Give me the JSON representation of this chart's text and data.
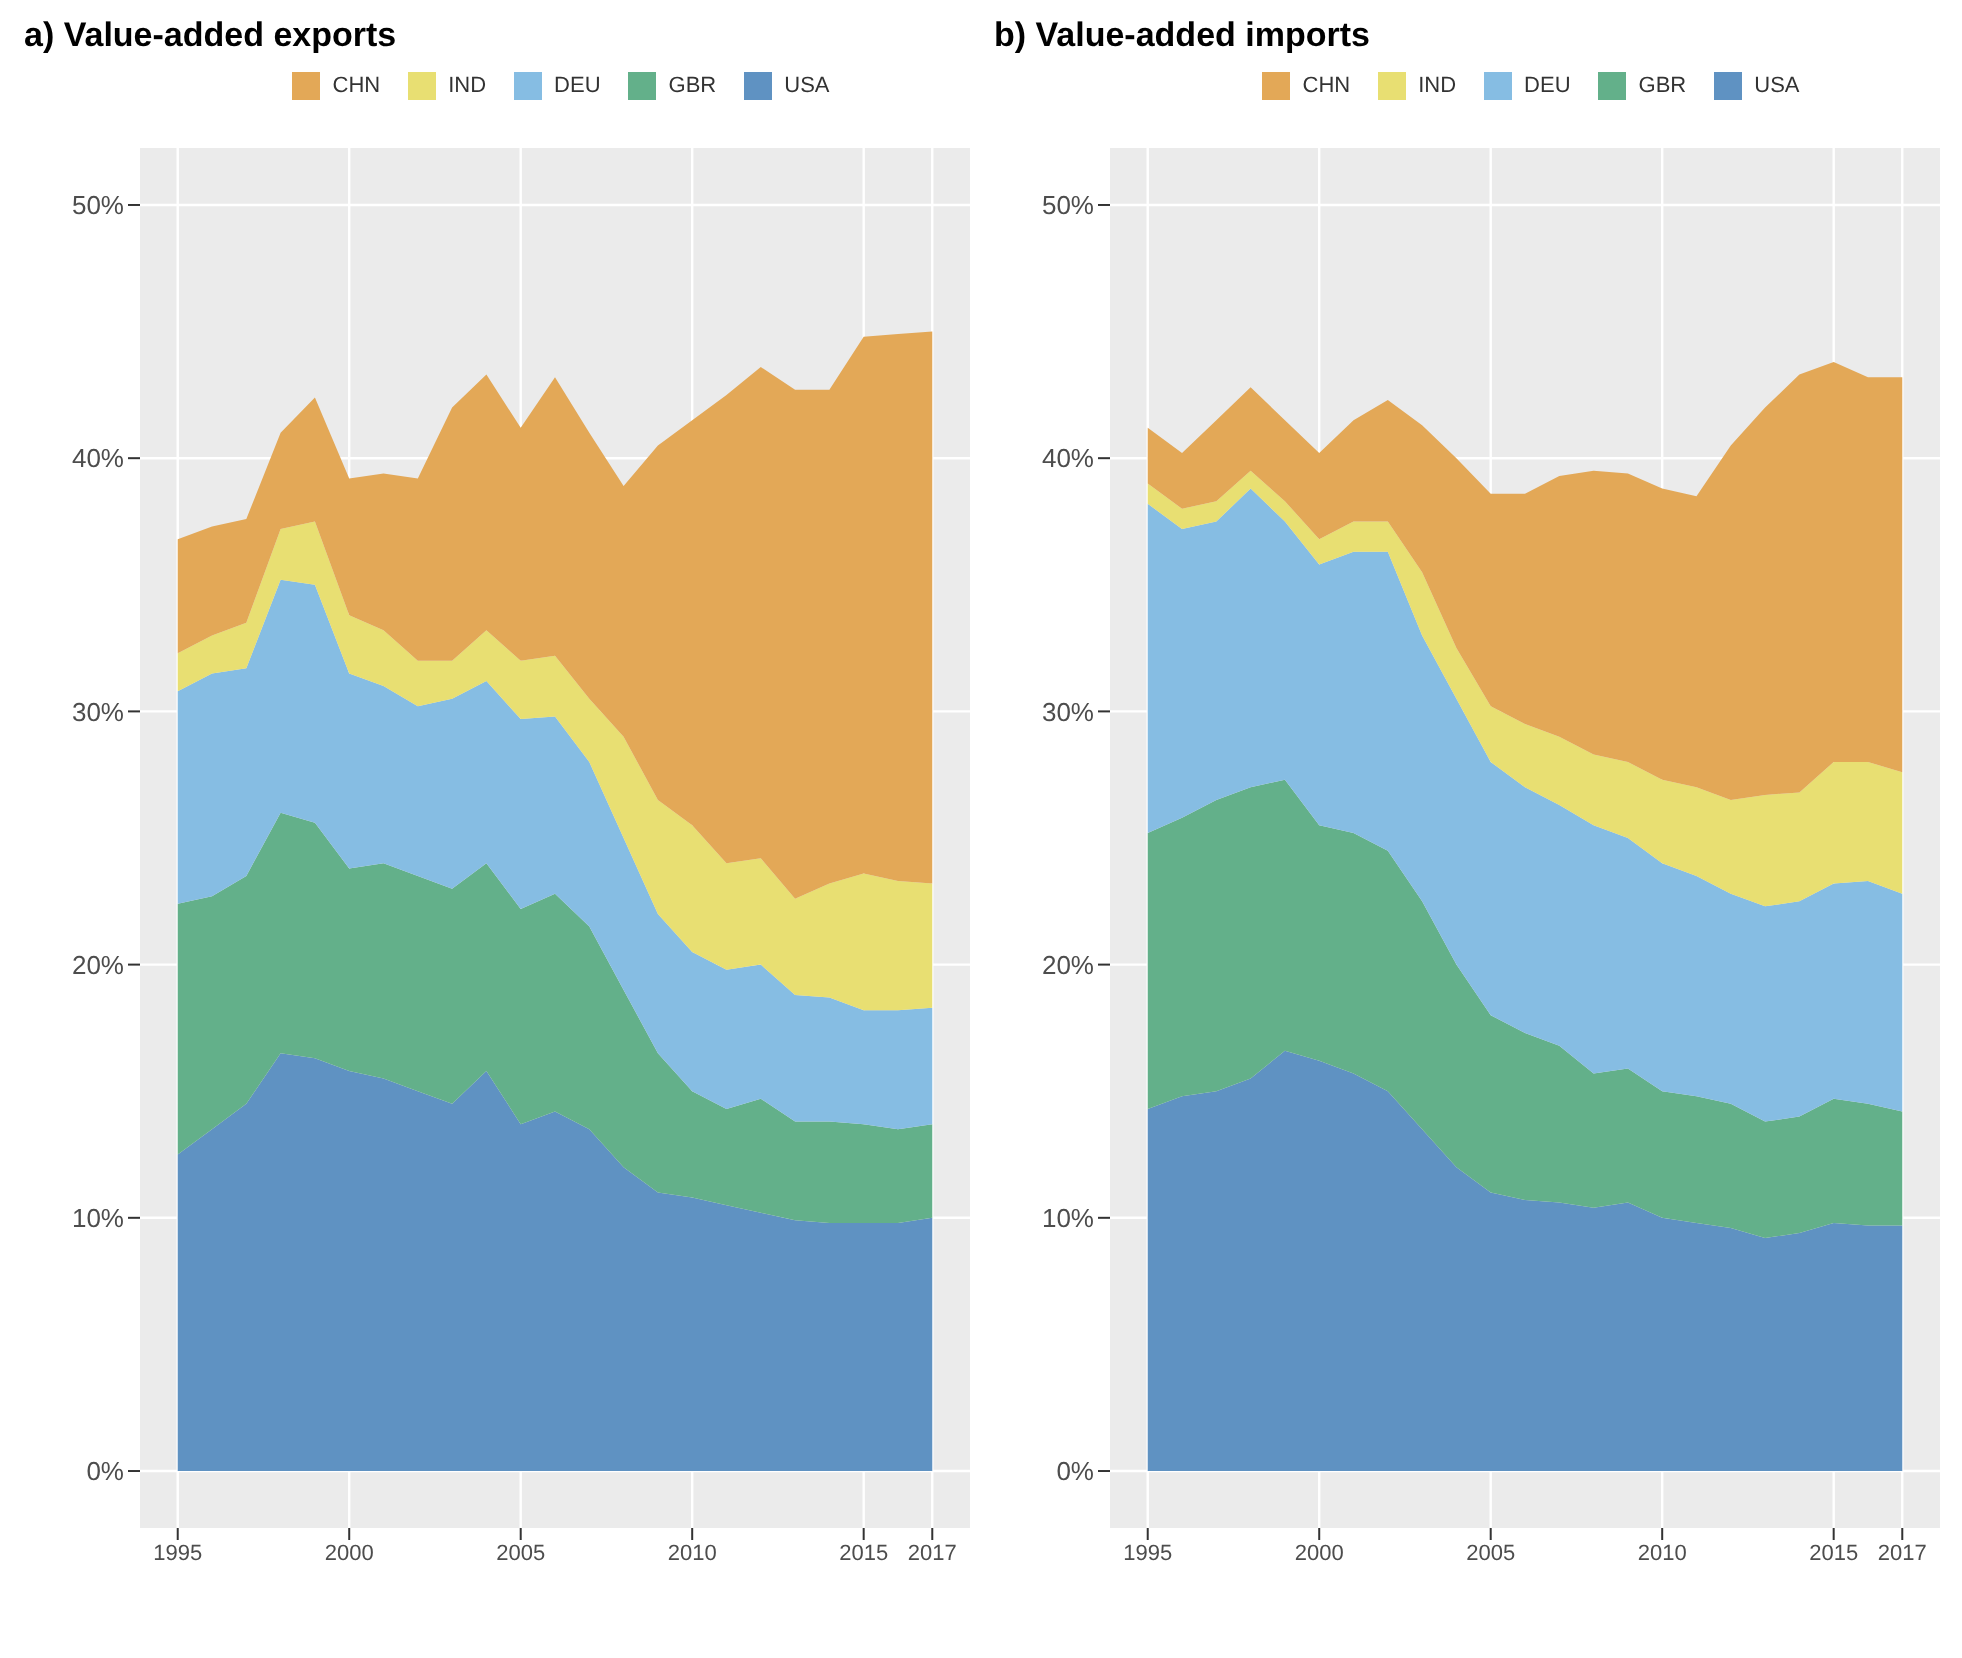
{
  "chart_data": [
    {
      "type": "area",
      "title": "a) Value-added exports",
      "stacked": true,
      "legend": "top",
      "grid": true,
      "x": [
        1995,
        1996,
        1997,
        1998,
        1999,
        2000,
        2001,
        2002,
        2003,
        2004,
        2005,
        2006,
        2007,
        2008,
        2009,
        2010,
        2011,
        2012,
        2013,
        2014,
        2015,
        2016,
        2017
      ],
      "xlim": [
        1993.9,
        2018.1
      ],
      "xticks": [
        1995,
        2000,
        2005,
        2010,
        2015,
        2017
      ],
      "ylim": [
        -2.25,
        52.25
      ],
      "yticks": [
        {
          "value": 0,
          "label": "0%"
        },
        {
          "value": 10,
          "label": "10%"
        },
        {
          "value": 20,
          "label": "20%"
        },
        {
          "value": 30,
          "label": "30%"
        },
        {
          "value": 40,
          "label": "40%"
        },
        {
          "value": 50,
          "label": "50%"
        }
      ],
      "series": [
        {
          "name": "USA",
          "color": "#5f92c2",
          "values": [
            12.5,
            13.5,
            14.5,
            16.5,
            16.3,
            15.8,
            15.5,
            15.0,
            14.5,
            15.8,
            13.7,
            14.2,
            13.5,
            12.0,
            11.0,
            10.8,
            10.5,
            10.2,
            9.9,
            9.8,
            9.8,
            9.8,
            10.0
          ]
        },
        {
          "name": "GBR",
          "color": "#63b08a",
          "values": [
            9.9,
            9.2,
            9.0,
            9.5,
            9.3,
            8.0,
            8.5,
            8.5,
            8.5,
            8.2,
            8.5,
            8.6,
            8.0,
            7.0,
            5.5,
            4.2,
            3.8,
            4.5,
            3.9,
            4.0,
            3.9,
            3.7,
            3.7
          ]
        },
        {
          "name": "DEU",
          "color": "#86bde3",
          "values": [
            8.4,
            8.8,
            8.2,
            9.2,
            9.4,
            7.7,
            7.0,
            6.7,
            7.5,
            7.2,
            7.5,
            7.0,
            6.5,
            6.0,
            5.5,
            5.5,
            5.5,
            5.3,
            5.0,
            4.9,
            4.5,
            4.7,
            4.6
          ]
        },
        {
          "name": "IND",
          "color": "#e8df72",
          "values": [
            1.5,
            1.5,
            1.8,
            2.0,
            2.5,
            2.3,
            2.2,
            1.8,
            1.5,
            2.0,
            2.3,
            2.4,
            2.5,
            4.0,
            4.5,
            5.0,
            4.2,
            4.2,
            3.8,
            4.5,
            5.4,
            5.1,
            4.9
          ]
        },
        {
          "name": "CHN",
          "color": "#e3a857",
          "values": [
            4.5,
            4.3,
            4.1,
            3.8,
            4.9,
            5.4,
            6.2,
            7.2,
            10.0,
            10.1,
            9.2,
            11.0,
            10.5,
            9.9,
            14.0,
            16.0,
            18.5,
            19.4,
            20.1,
            19.5,
            21.2,
            21.6,
            21.8
          ]
        }
      ]
    },
    {
      "type": "area",
      "title": "b) Value-added imports",
      "stacked": true,
      "legend": "top",
      "grid": true,
      "x": [
        1995,
        1996,
        1997,
        1998,
        1999,
        2000,
        2001,
        2002,
        2003,
        2004,
        2005,
        2006,
        2007,
        2008,
        2009,
        2010,
        2011,
        2012,
        2013,
        2014,
        2015,
        2016,
        2017
      ],
      "xlim": [
        1993.9,
        2018.1
      ],
      "xticks": [
        1995,
        2000,
        2005,
        2010,
        2015,
        2017
      ],
      "ylim": [
        -2.25,
        52.25
      ],
      "yticks": [
        {
          "value": 0,
          "label": "0%"
        },
        {
          "value": 10,
          "label": "10%"
        },
        {
          "value": 20,
          "label": "20%"
        },
        {
          "value": 30,
          "label": "30%"
        },
        {
          "value": 40,
          "label": "40%"
        },
        {
          "value": 50,
          "label": "50%"
        }
      ],
      "series": [
        {
          "name": "USA",
          "color": "#5f92c2",
          "values": [
            14.3,
            14.8,
            15.0,
            15.5,
            16.6,
            16.2,
            15.7,
            15.0,
            13.5,
            12.0,
            11.0,
            10.7,
            10.6,
            10.4,
            10.6,
            10.0,
            9.8,
            9.6,
            9.2,
            9.4,
            9.8,
            9.7,
            9.7
          ]
        },
        {
          "name": "GBR",
          "color": "#63b08a",
          "values": [
            10.9,
            11.0,
            11.5,
            11.5,
            10.7,
            9.3,
            9.5,
            9.5,
            9.0,
            8.0,
            7.0,
            6.6,
            6.2,
            5.3,
            5.3,
            5.0,
            5.0,
            4.9,
            4.6,
            4.6,
            4.9,
            4.8,
            4.5
          ]
        },
        {
          "name": "DEU",
          "color": "#86bde3",
          "values": [
            13.0,
            11.4,
            11.0,
            11.8,
            10.2,
            10.3,
            11.1,
            11.8,
            10.5,
            10.5,
            10.0,
            9.7,
            9.5,
            9.8,
            9.1,
            9.0,
            8.7,
            8.3,
            8.5,
            8.5,
            8.5,
            8.8,
            8.6
          ]
        },
        {
          "name": "IND",
          "color": "#e8df72",
          "values": [
            0.8,
            0.8,
            0.8,
            0.7,
            0.8,
            1.0,
            1.2,
            1.2,
            2.5,
            2.0,
            2.2,
            2.5,
            2.7,
            2.8,
            3.0,
            3.3,
            3.5,
            3.7,
            4.4,
            4.3,
            4.8,
            4.7,
            4.8
          ]
        },
        {
          "name": "CHN",
          "color": "#e3a857",
          "values": [
            2.2,
            2.2,
            3.2,
            3.3,
            3.2,
            3.4,
            4.0,
            4.8,
            5.8,
            7.5,
            8.4,
            9.1,
            10.3,
            11.2,
            11.4,
            11.5,
            11.5,
            14.0,
            15.3,
            16.5,
            15.8,
            15.2,
            15.6
          ]
        }
      ]
    }
  ]
}
